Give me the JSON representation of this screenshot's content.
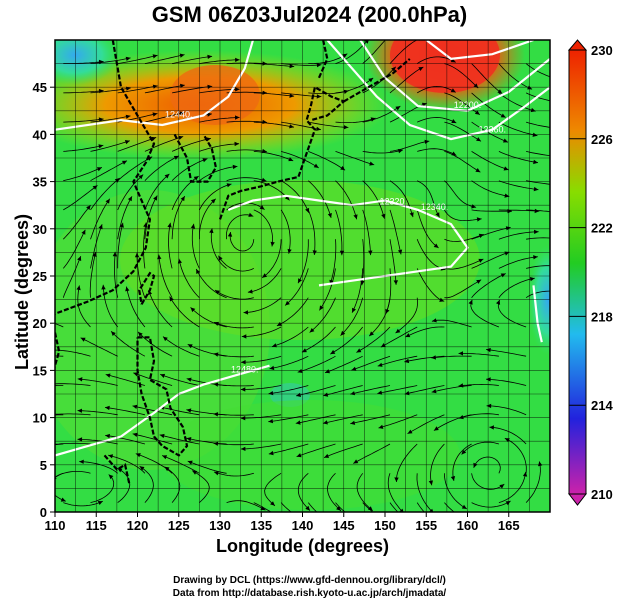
{
  "title": "GSM 06Z03Jul2024 (200.0hPa)",
  "chart_data": {
    "type": "heatmap",
    "variable_level": "200.0hPa",
    "xlabel": "Longitude (degrees)",
    "ylabel": "Latitude  (degrees)",
    "xlim": [
      110,
      170
    ],
    "ylim": [
      0,
      50
    ],
    "x_ticks": [
      "110",
      "115",
      "120",
      "125",
      "130",
      "135",
      "140",
      "145",
      "150",
      "155",
      "160",
      "165"
    ],
    "y_ticks": [
      "0",
      "5",
      "10",
      "15",
      "20",
      "25",
      "30",
      "35",
      "40",
      "45"
    ],
    "colorbar": {
      "ticks": [
        "230",
        "226",
        "222",
        "218",
        "214",
        "210"
      ],
      "min": 210,
      "max": 230,
      "stops": [
        "#cc22aa",
        "#2222dd",
        "#22bbee",
        "#22cc22",
        "#88dd00",
        "#ee8800",
        "#ee2200"
      ]
    },
    "contour_labels": [
      "12440.",
      "12360.",
      "12200.",
      "12340.",
      "12480.",
      "12320."
    ],
    "grid": true
  },
  "credits": {
    "line1": "Drawing by DCL (https://www.gfd-dennou.org/library/dcl/)",
    "line2": "Data from http://database.rish.kyoto-u.ac.jp/arch/jmadata/"
  }
}
